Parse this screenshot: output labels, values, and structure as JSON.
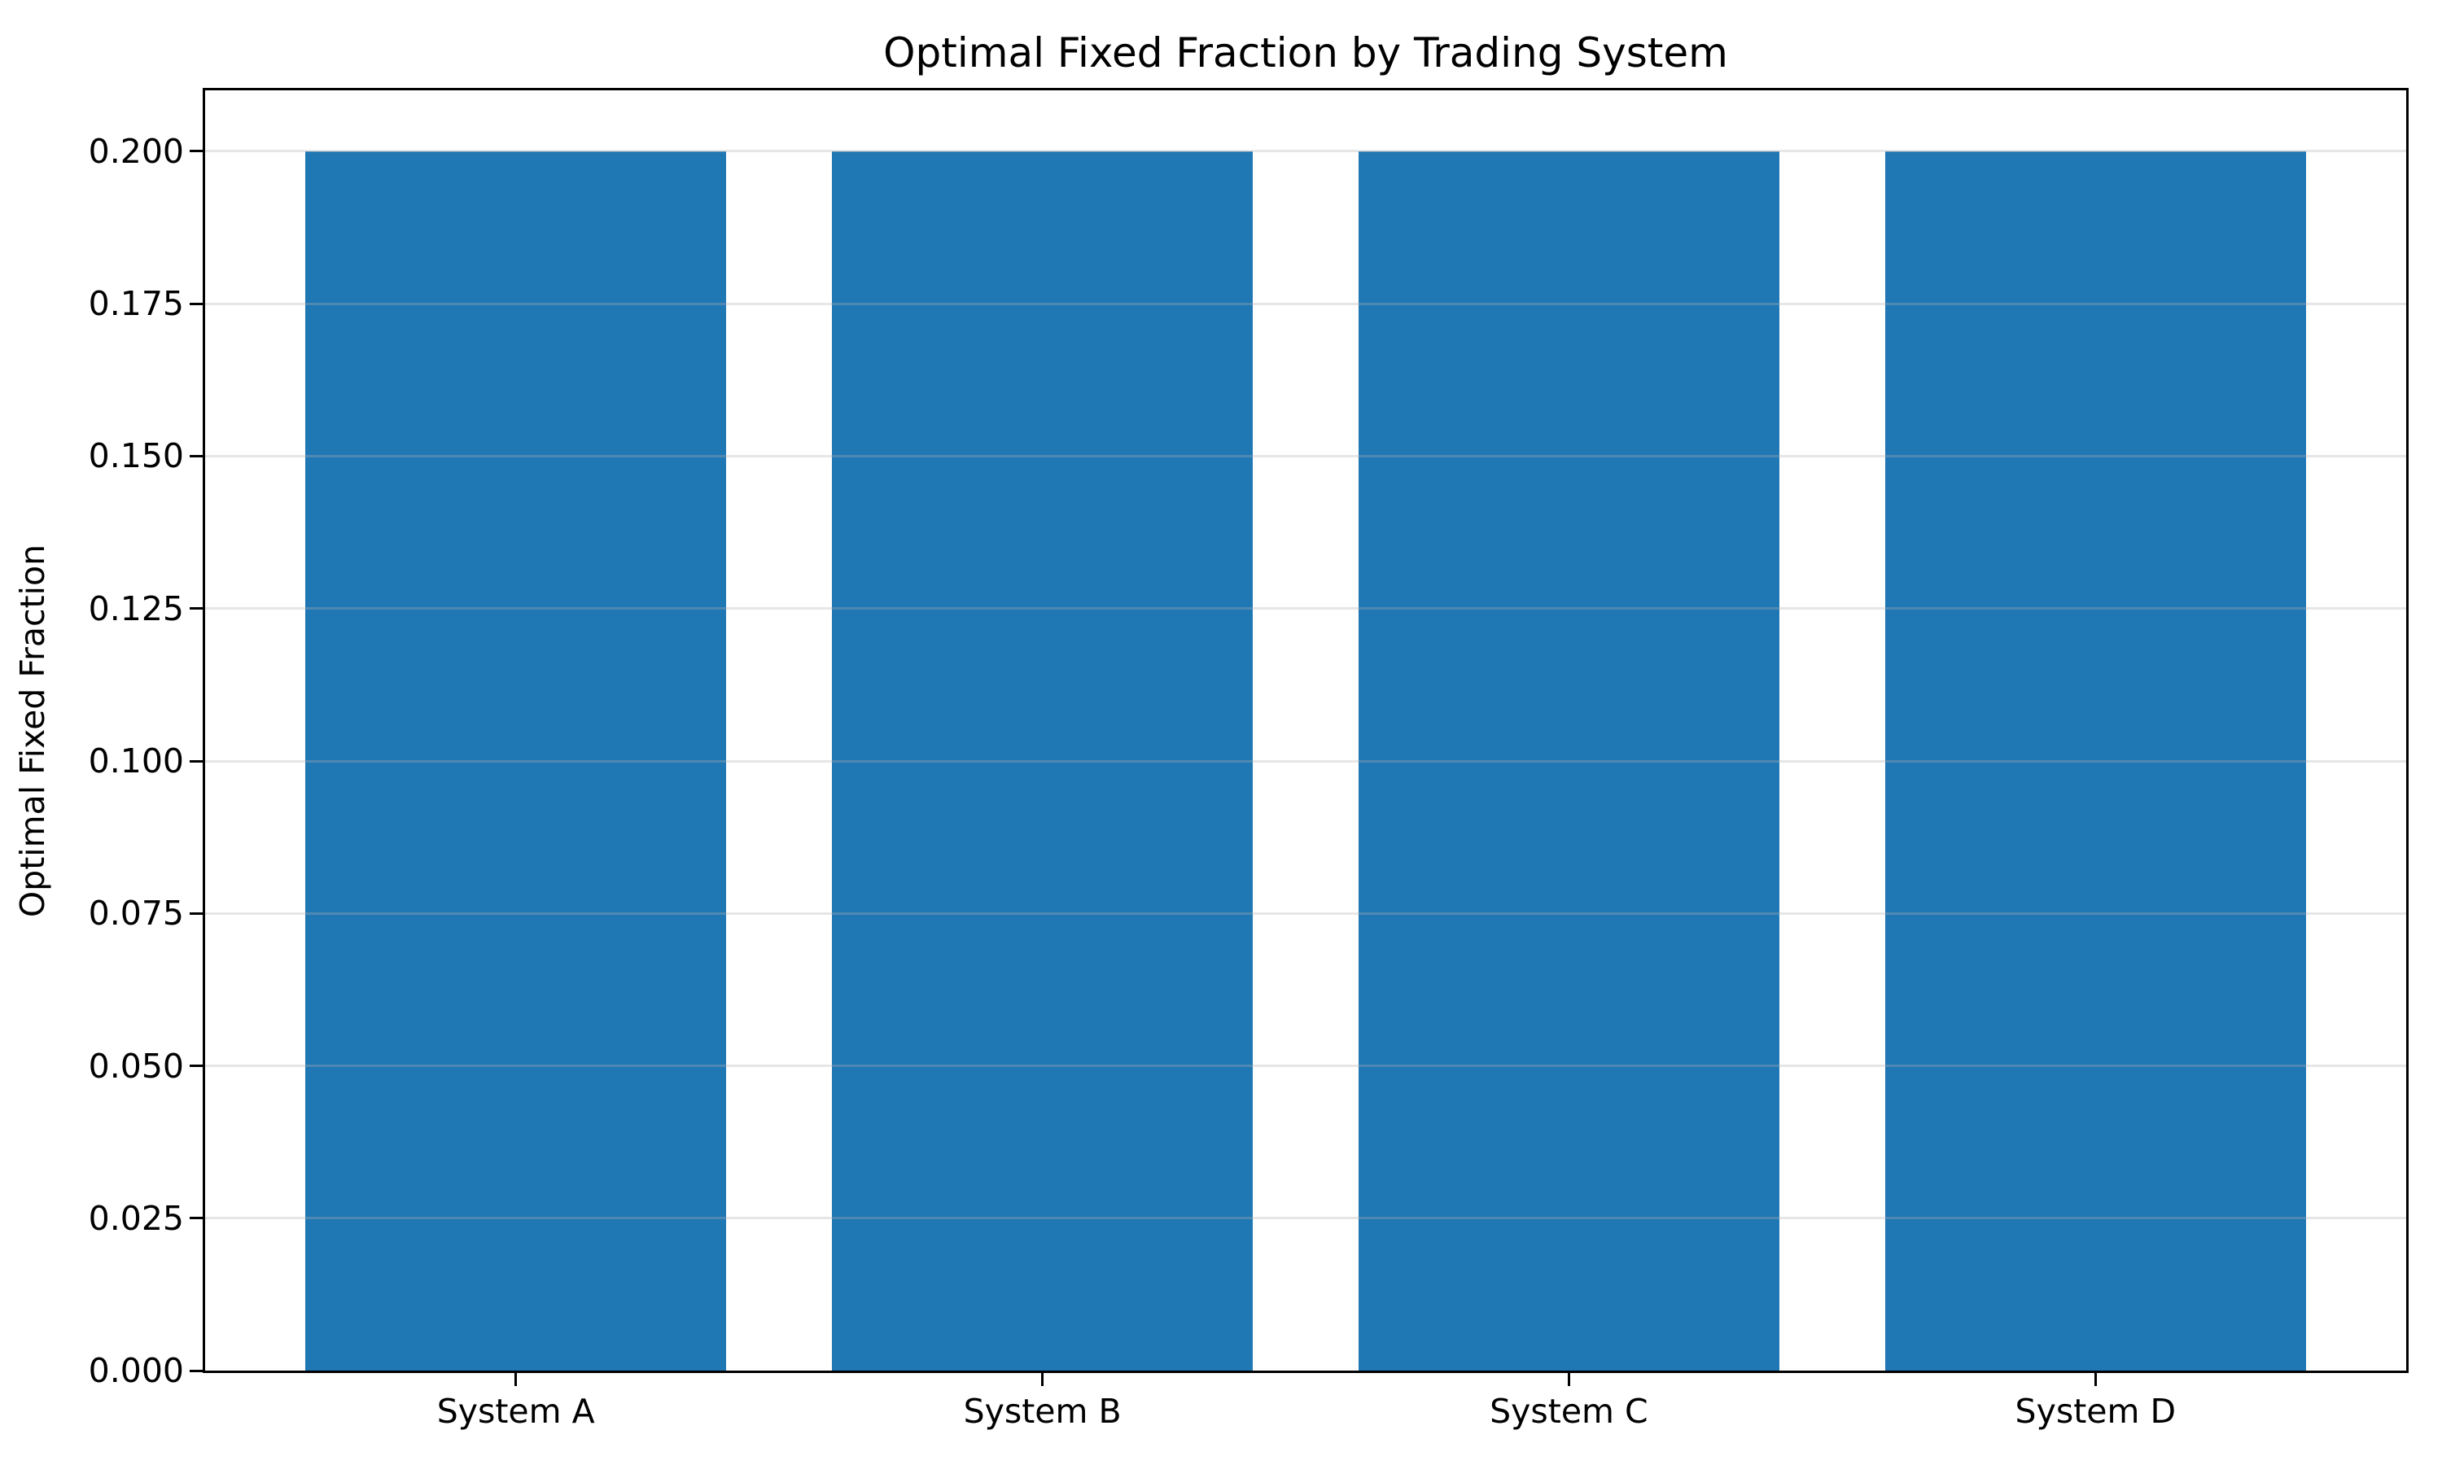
{
  "figure": {
    "background": "#ffffff"
  },
  "chart_data": {
    "type": "bar",
    "title": "Optimal Fixed Fraction by Trading System",
    "xlabel": "",
    "ylabel": "Optimal Fixed Fraction",
    "categories": [
      "System A",
      "System B",
      "System C",
      "System D"
    ],
    "values": [
      0.2,
      0.2,
      0.2,
      0.2
    ],
    "bar_color": "#1f77b4",
    "bar_width": 0.8,
    "xlim": [
      -0.59,
      3.59
    ],
    "ylim": [
      0,
      0.21
    ],
    "yticks": [
      0.0,
      0.025,
      0.05,
      0.075,
      0.1,
      0.125,
      0.15,
      0.175,
      0.2
    ],
    "ytick_labels": [
      "0.000",
      "0.025",
      "0.050",
      "0.075",
      "0.100",
      "0.125",
      "0.150",
      "0.175",
      "0.200"
    ],
    "grid": true,
    "grid_axis": "y",
    "grid_color": "rgba(176,176,176,0.32)",
    "legend": false,
    "spine_color": "#000000",
    "text_color": "#000000"
  }
}
